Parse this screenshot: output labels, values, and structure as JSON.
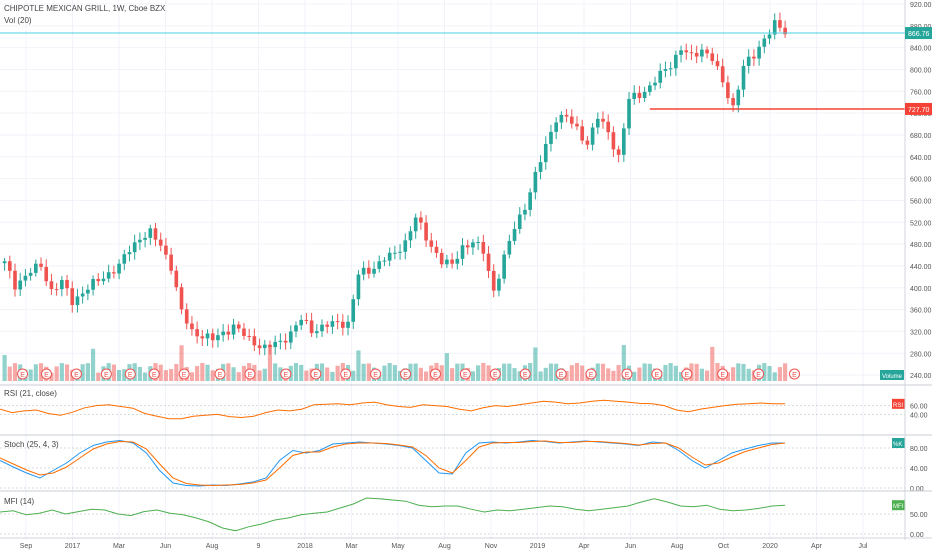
{
  "chart_data": [
    {
      "type": "candlestick",
      "title": "CHIPOTLE MEXICAN GRILL, 1W, Cboe BZX",
      "ylim": [
        220,
        920
      ],
      "yticks": [
        "920.00",
        "880.00",
        "840.00",
        "800.00",
        "760.00",
        "720.00",
        "680.00",
        "640.00",
        "600.00",
        "560.00",
        "520.00",
        "480.00",
        "440.00",
        "400.00",
        "360.00",
        "320.00",
        "280.00",
        "240.00"
      ],
      "last_price_label": "866.76",
      "last_price": 866.76,
      "hline_label": "727.70",
      "hline_price": 727.7,
      "price_path": [
        [
          0,
          445
        ],
        [
          2,
          405
        ],
        [
          5,
          430
        ],
        [
          7,
          440
        ],
        [
          9,
          395
        ],
        [
          11,
          410
        ],
        [
          13,
          375
        ],
        [
          16,
          400
        ],
        [
          19,
          420
        ],
        [
          22,
          440
        ],
        [
          24,
          470
        ],
        [
          26,
          492
        ],
        [
          28,
          500
        ],
        [
          30,
          478
        ],
        [
          32,
          440
        ],
        [
          34,
          355
        ],
        [
          36,
          320
        ],
        [
          40,
          305
        ],
        [
          44,
          330
        ],
        [
          47,
          305
        ],
        [
          50,
          290
        ],
        [
          53,
          300
        ],
        [
          55,
          318
        ],
        [
          57,
          342
        ],
        [
          59,
          322
        ],
        [
          62,
          332
        ],
        [
          66,
          336
        ],
        [
          68,
          425
        ],
        [
          70,
          430
        ],
        [
          73,
          455
        ],
        [
          75,
          460
        ],
        [
          77,
          485
        ],
        [
          79,
          530
        ],
        [
          81,
          490
        ],
        [
          84,
          450
        ],
        [
          86,
          440
        ],
        [
          88,
          475
        ],
        [
          90,
          485
        ],
        [
          92,
          465
        ],
        [
          94,
          395
        ],
        [
          96,
          455
        ],
        [
          98,
          510
        ],
        [
          100,
          550
        ],
        [
          102,
          605
        ],
        [
          104,
          660
        ],
        [
          106,
          712
        ],
        [
          108,
          712
        ],
        [
          110,
          690
        ],
        [
          112,
          665
        ],
        [
          114,
          712
        ],
        [
          116,
          685
        ],
        [
          118,
          640
        ],
        [
          120,
          745
        ],
        [
          122,
          755
        ],
        [
          124,
          768
        ],
        [
          126,
          790
        ],
        [
          128,
          810
        ],
        [
          130,
          838
        ],
        [
          132,
          822
        ],
        [
          134,
          838
        ],
        [
          136,
          820
        ],
        [
          138,
          775
        ],
        [
          140,
          732
        ],
        [
          142,
          805
        ],
        [
          144,
          825
        ],
        [
          146,
          858
        ],
        [
          148,
          882
        ],
        [
          150,
          868
        ]
      ],
      "events": [
        3,
        7,
        12,
        17,
        21,
        25,
        30,
        36,
        41,
        47,
        52,
        57,
        62,
        67,
        72,
        77,
        82,
        87,
        93,
        98,
        104,
        109,
        114,
        120,
        126,
        132
      ],
      "volume_label": "Volume",
      "volume_title": "Vol (20)"
    },
    {
      "type": "line",
      "title": "RSI (21, close)",
      "ylim": [
        0,
        100
      ],
      "yticks": [
        "60.00",
        "40.00"
      ],
      "last_label": "RSI",
      "series": [
        {
          "color": "#ff6d00",
          "values": [
            52,
            44,
            48,
            50,
            42,
            38,
            45,
            55,
            60,
            62,
            58,
            54,
            42,
            36,
            30,
            30,
            36,
            38,
            40,
            35,
            33,
            36,
            44,
            50,
            48,
            52,
            62,
            63,
            64,
            62,
            66,
            68,
            62,
            58,
            56,
            62,
            60,
            58,
            52,
            48,
            55,
            60,
            58,
            62,
            66,
            70,
            68,
            64,
            66,
            70,
            72,
            70,
            68,
            65,
            64,
            60,
            50,
            46,
            52,
            56,
            60,
            63,
            64,
            66,
            64,
            64
          ]
        }
      ]
    },
    {
      "type": "line",
      "title": "Stoch (25, 4, 3)",
      "ylim": [
        0,
        100
      ],
      "yticks": [
        "80.00",
        "40.00",
        "0.00"
      ],
      "last_label": "%K",
      "series": [
        {
          "name": "%K",
          "color": "#2196f3",
          "values": [
            55,
            42,
            30,
            20,
            35,
            50,
            70,
            85,
            92,
            95,
            90,
            70,
            35,
            10,
            5,
            4,
            6,
            5,
            8,
            12,
            20,
            55,
            75,
            70,
            75,
            88,
            90,
            92,
            90,
            88,
            85,
            80,
            55,
            30,
            28,
            70,
            90,
            92,
            90,
            92,
            95,
            93,
            90,
            92,
            94,
            92,
            90,
            88,
            85,
            92,
            90,
            75,
            55,
            40,
            55,
            70,
            78,
            85,
            90,
            90
          ]
        },
        {
          "name": "%D",
          "color": "#ff6d00",
          "values": [
            60,
            48,
            36,
            26,
            30,
            42,
            60,
            78,
            88,
            93,
            92,
            78,
            48,
            20,
            9,
            6,
            5,
            6,
            7,
            10,
            16,
            40,
            65,
            72,
            72,
            82,
            88,
            90,
            90,
            89,
            86,
            82,
            65,
            40,
            30,
            55,
            82,
            90,
            91,
            91,
            93,
            94,
            91,
            91,
            93,
            93,
            91,
            89,
            86,
            89,
            90,
            80,
            62,
            46,
            50,
            62,
            73,
            80,
            87,
            90
          ]
        }
      ]
    },
    {
      "type": "line",
      "title": "MFI (14)",
      "ylim": [
        0,
        100
      ],
      "yticks": [
        "50.00",
        "0.00"
      ],
      "last_label": "MFI",
      "series": [
        {
          "color": "#4caf50",
          "values": [
            55,
            58,
            48,
            52,
            60,
            50,
            56,
            62,
            60,
            50,
            46,
            56,
            60,
            52,
            48,
            40,
            30,
            15,
            8,
            18,
            25,
            35,
            40,
            48,
            52,
            55,
            65,
            75,
            90,
            88,
            85,
            82,
            72,
            68,
            70,
            70,
            62,
            55,
            60,
            58,
            62,
            66,
            70,
            68,
            62,
            58,
            62,
            66,
            70,
            80,
            88,
            80,
            70,
            68,
            72,
            62,
            58,
            60,
            64,
            70,
            72
          ]
        }
      ]
    }
  ],
  "x_axis": [
    "Sep",
    "2017",
    "Mar",
    "Jun",
    "Aug",
    "9",
    "2018",
    "Mar",
    "May",
    "Aug",
    "Nov",
    "2019",
    "Apr",
    "Jun",
    "Aug",
    "Oct",
    "2020",
    "Apr",
    "Jul"
  ]
}
